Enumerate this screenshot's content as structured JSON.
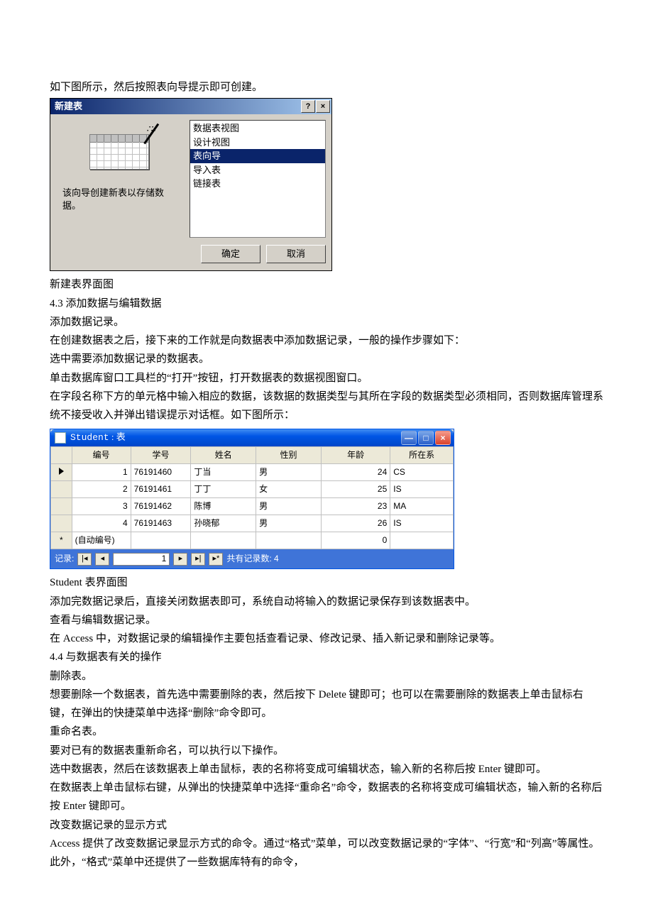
{
  "text": {
    "intro": "如下图所示，然后按照表向导提示即可创建。",
    "caption1": "新建表界面图",
    "s43": "4.3  添加数据与编辑数据",
    "p1": "添加数据记录。",
    "p2": "在创建数据表之后，接下来的工作就是向数据表中添加数据记录，一般的操作步骤如下：",
    "p3": "选中需要添加数据记录的数据表。",
    "p4": "单击数据库窗口工具栏的“打开”按钮，打开数据表的数据视图窗口。",
    "p5": "在字段名称下方的单元格中输入相应的数据，该数据的数据类型与其所在字段的数据类型必须相同，否则数据库管理系统不接受收入并弹出错误提示对话框。如下图所示：",
    "caption2": "Student 表界面图",
    "p6": "添加完数据记录后，直接关闭数据表即可，系统自动将输入的数据记录保存到该数据表中。",
    "p7": "查看与编辑数据记录。",
    "p8": "在 Access 中，对数据记录的编辑操作主要包括查看记录、修改记录、插入新记录和删除记录等。",
    "s44": "4.4  与数据表有关的操作",
    "p9": "删除表。",
    "p10": "想要删除一个数据表，首先选中需要删除的表，然后按下 Delete 键即可；也可以在需要删除的数据表上单击鼠标右键，在弹出的快捷菜单中选择“删除”命令即可。",
    "p11": "重命名表。",
    "p12": "要对已有的数据表重新命名，可以执行以下操作。",
    "p13": "选中数据表，然后在该数据表上单击鼠标，表的名称将变成可编辑状态，输入新的名称后按 Enter 键即可。",
    "p14": "在数据表上单击鼠标右键，从弹出的快捷菜单中选择“重命名”命令，数据表的名称将变成可编辑状态，输入新的名称后按 Enter 键即可。",
    "p15": "改变数据记录的显示方式",
    "p16": "Access 提供了改变数据记录显示方式的命令。通过“格式”菜单，可以改变数据记录的“字体”、“行宽”和“列高”等属性。此外，“格式”菜单中还提供了一些数据库特有的命令，"
  },
  "dlg1": {
    "title": "新建表",
    "desc": "该向导创建新表以存储数据。",
    "list": [
      "数据表视图",
      "设计视图",
      "表向导",
      "导入表",
      "链接表"
    ],
    "selected_index": 2,
    "ok": "确定",
    "cancel": "取消",
    "help": "?",
    "close": "×"
  },
  "win2": {
    "title_en": "Student",
    "title_zh": " : 表",
    "columns": [
      "编号",
      "学号",
      "姓名",
      "性别",
      "年龄",
      "所在系"
    ],
    "rows": [
      {
        "id": "1",
        "num": "76191460",
        "name": "丁当",
        "sex": "男",
        "age": "24",
        "dept": "CS"
      },
      {
        "id": "2",
        "num": "76191461",
        "name": "丁丁",
        "sex": "女",
        "age": "25",
        "dept": "IS"
      },
      {
        "id": "3",
        "num": "76191462",
        "name": "陈博",
        "sex": "男",
        "age": "23",
        "dept": "MA"
      },
      {
        "id": "4",
        "num": "76191463",
        "name": "孙晓郁",
        "sex": "男",
        "age": "26",
        "dept": "IS"
      }
    ],
    "newrow_id": "(自动编号)",
    "newrow_age": "0",
    "newrow_mark": "*",
    "nav_label": "记录:",
    "nav_current": "1",
    "nav_total_label": "共有记录数:",
    "nav_total": "4",
    "colors": {
      "titlebar_from": "#3f8cf3",
      "titlebar_to": "#0046c8",
      "panel_bg": "#ece9d8",
      "grid_border": "#c0c0c0",
      "navbar_bg": "#3f74d8"
    }
  }
}
